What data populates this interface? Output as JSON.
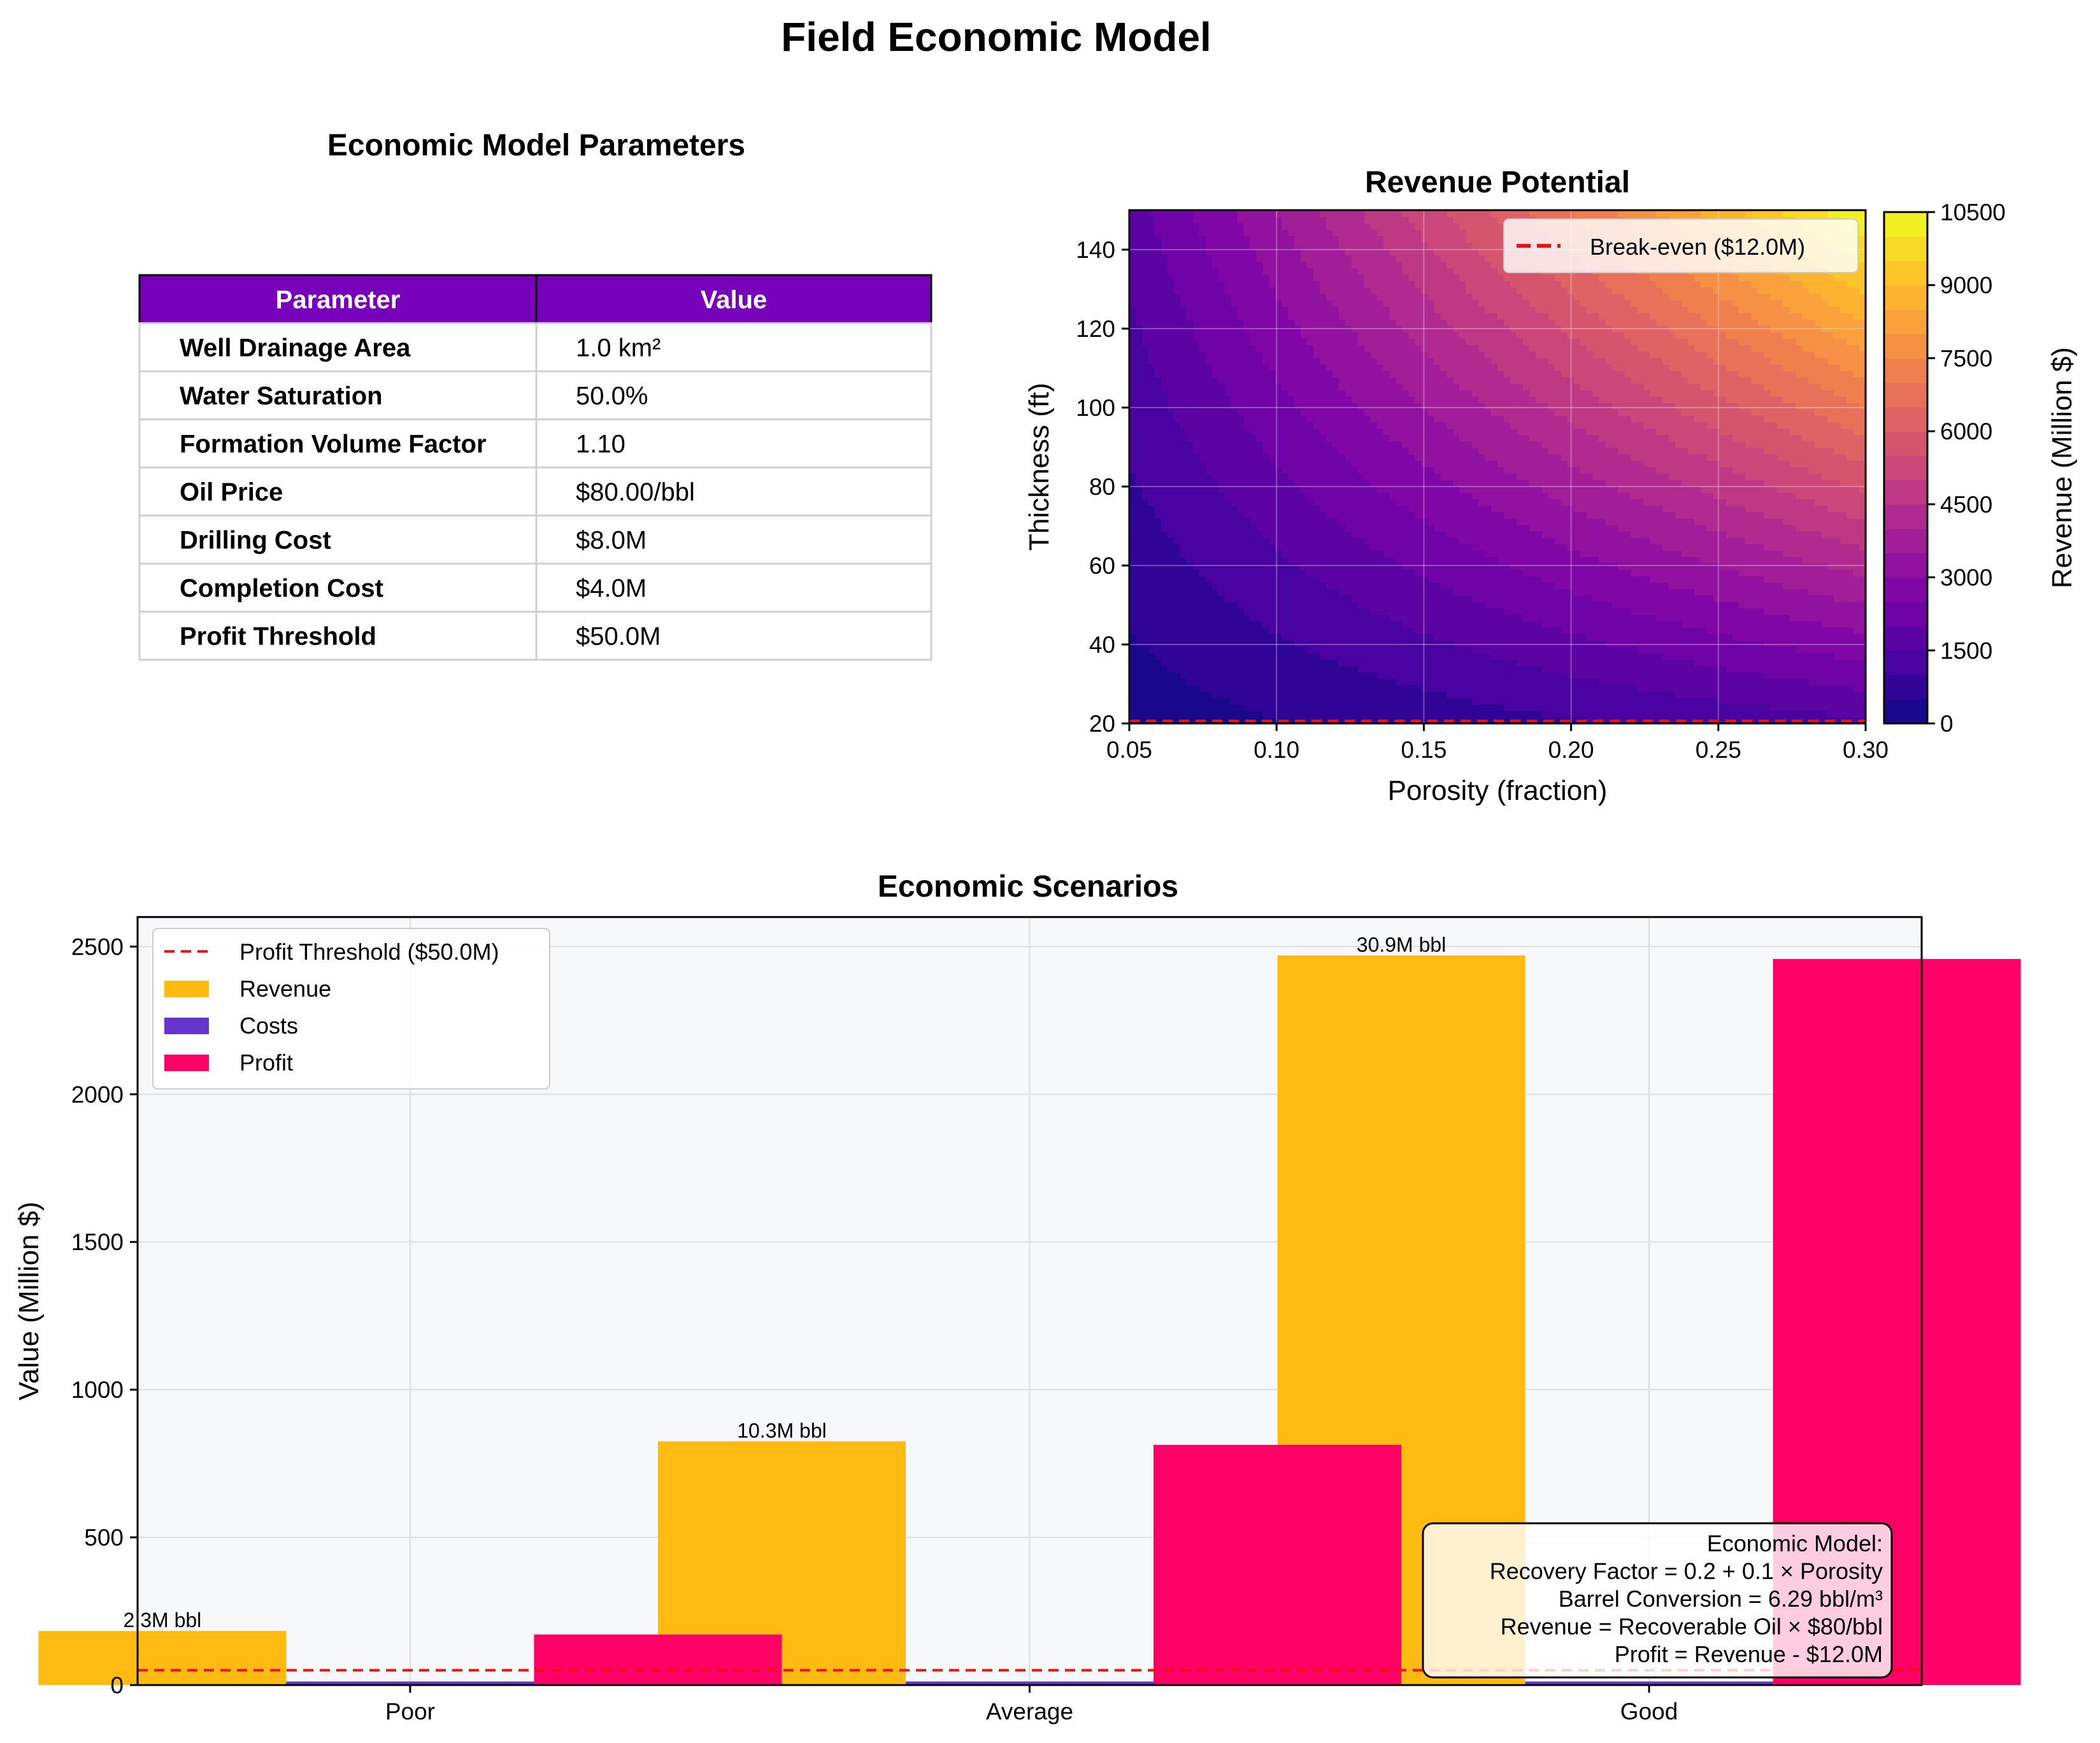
{
  "figure": {
    "title": "Field Economic Model"
  },
  "parameters_table": {
    "title": "Economic Model Parameters",
    "header_color": "#7700bb",
    "columns": [
      "Parameter",
      "Value"
    ],
    "rows": [
      [
        "Well Drainage Area",
        "1.0 km²"
      ],
      [
        "Water Saturation",
        "50.0%"
      ],
      [
        "Formation Volume Factor",
        "1.10"
      ],
      [
        "Oil Price",
        "$80.00/bbl"
      ],
      [
        "Drilling Cost",
        "$8.0M"
      ],
      [
        "Completion Cost",
        "$4.0M"
      ],
      [
        "Profit Threshold",
        "$50.0M"
      ]
    ]
  },
  "chart_data": [
    {
      "type": "heatmap",
      "title": "Revenue Potential",
      "xlabel": "Porosity (fraction)",
      "ylabel": "Thickness (ft)",
      "xlim": [
        0.05,
        0.3
      ],
      "ylim": [
        20,
        150
      ],
      "xticks": [
        "0.05",
        "0.10",
        "0.15",
        "0.20",
        "0.25",
        "0.30"
      ],
      "yticks": [
        "20",
        "40",
        "60",
        "80",
        "100",
        "120",
        "140"
      ],
      "colormap": "plasma",
      "colorbar": {
        "label": "Revenue (Million $)",
        "range": [
          0,
          10500
        ],
        "ticks": [
          "0",
          "1500",
          "3000",
          "4500",
          "6000",
          "7500",
          "9000",
          "10500"
        ]
      },
      "break_even": {
        "label": "Break-even ($12.0M)",
        "color": "#ee1111"
      },
      "legend_position": "top-right",
      "grid": true
    },
    {
      "type": "bar",
      "title": "Economic Scenarios",
      "xlabel": "",
      "ylabel": "Value (Million $)",
      "ylim": [
        0,
        2600
      ],
      "yticks": [
        "0",
        "500",
        "1000",
        "1500",
        "2000",
        "2500"
      ],
      "categories": [
        "Poor",
        "Average",
        "Good"
      ],
      "series": [
        {
          "name": "Revenue",
          "color": "#ffbb11",
          "values": [
            183.0,
            825.0,
            2470.0
          ]
        },
        {
          "name": "Costs",
          "color": "#6633cc",
          "values": [
            12.0,
            12.0,
            12.0
          ]
        },
        {
          "name": "Profit",
          "color": "#ff0066",
          "values": [
            171.0,
            813.0,
            2458.0
          ]
        }
      ],
      "bar_labels": [
        "2.3M bbl",
        "10.3M bbl",
        "30.9M bbl"
      ],
      "threshold": {
        "label": "Profit Threshold ($50.0M)",
        "value": 50,
        "color": "#ee1111"
      },
      "legend_position": "top-left",
      "grid": true,
      "annotation": {
        "lines": [
          "Economic Model:",
          "Recovery Factor = 0.2 + 0.1 × Porosity",
          "Barrel Conversion = 6.29 bbl/m³",
          "Revenue = Recoverable Oil × $80/bbl",
          "Profit = Revenue - $12.0M"
        ],
        "position": "bottom-right"
      }
    }
  ]
}
